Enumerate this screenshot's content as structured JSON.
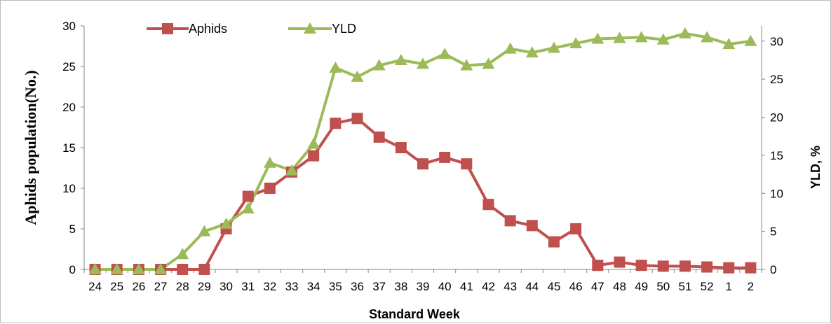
{
  "chart_data": {
    "type": "line",
    "categories": [
      "24",
      "25",
      "26",
      "27",
      "28",
      "29",
      "30",
      "31",
      "32",
      "33",
      "34",
      "35",
      "36",
      "37",
      "38",
      "39",
      "40",
      "41",
      "42",
      "43",
      "44",
      "45",
      "46",
      "47",
      "48",
      "49",
      "50",
      "51",
      "52",
      "1",
      "2"
    ],
    "xlabel": "Standard Week",
    "ylabel": "Aphids population(No.)",
    "y2label": "YLD, %",
    "ylim": [
      0,
      30
    ],
    "y2lim": [
      0,
      32
    ],
    "yticks": [
      0,
      5,
      10,
      15,
      20,
      25,
      30
    ],
    "y2ticks": [
      0,
      5,
      10,
      15,
      20,
      25,
      30
    ],
    "grid": false,
    "legend_position": "top-left",
    "series": [
      {
        "name": "Aphids",
        "axis": "left",
        "color": "#c0504d",
        "marker": "square",
        "values": [
          0,
          0,
          0,
          0,
          0,
          0,
          5,
          9,
          10,
          12,
          14,
          18,
          18.6,
          16.3,
          15,
          13,
          13.8,
          13,
          8,
          6,
          5.4,
          3.4,
          5,
          0.5,
          0.9,
          0.5,
          0.4,
          0.4,
          0.3,
          0.2,
          0.2
        ]
      },
      {
        "name": "YLD",
        "axis": "right",
        "color": "#9bbb59",
        "marker": "triangle",
        "values": [
          0,
          0,
          0,
          0,
          2,
          5,
          6,
          8,
          14,
          13,
          16.5,
          26.5,
          25.3,
          26.8,
          27.5,
          27,
          28.3,
          26.8,
          27,
          29,
          28.5,
          29.1,
          29.7,
          30.3,
          30.4,
          30.5,
          30.2,
          31,
          30.5,
          29.6,
          30
        ]
      }
    ]
  }
}
